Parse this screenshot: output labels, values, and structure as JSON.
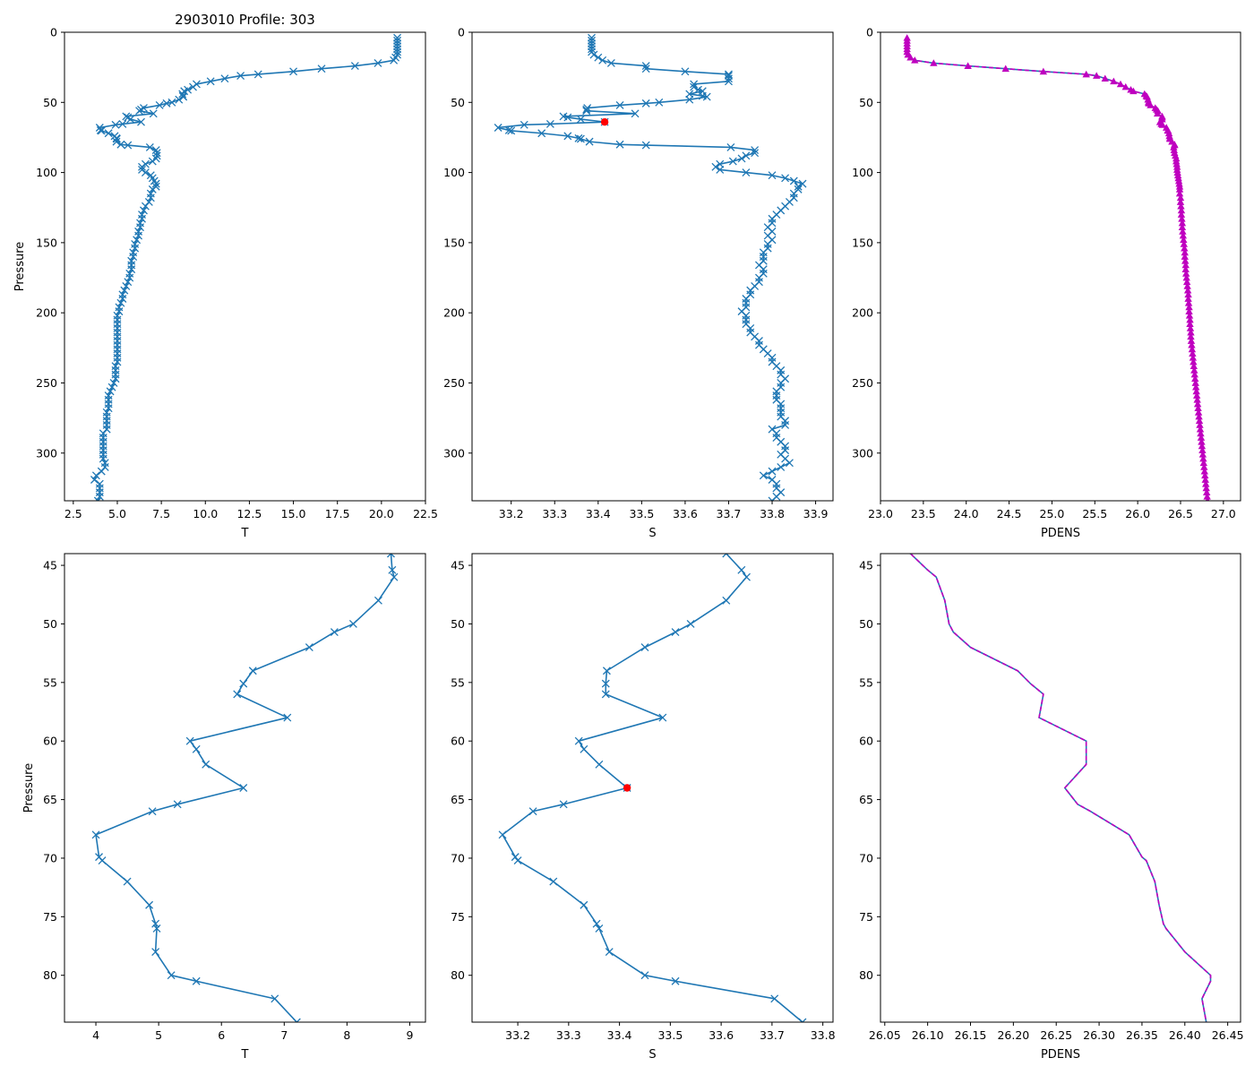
{
  "chart_data": {
    "title": "2903010 Profile: 303",
    "colors": {
      "line": "#1f77b4",
      "marker": "#1f77b4",
      "pdens_marker": "#bf00bf",
      "pdens_dash": "#bf00bf",
      "highlight": "#ff0000"
    },
    "profile": [
      {
        "p": 4,
        "t": 20.9,
        "s": 33.385,
        "d": 23.31
      },
      {
        "p": 6,
        "t": 20.9,
        "s": 33.385,
        "d": 23.31
      },
      {
        "p": 8,
        "t": 20.9,
        "s": 33.385,
        "d": 23.31
      },
      {
        "p": 10,
        "t": 20.9,
        "s": 33.385,
        "d": 23.31
      },
      {
        "p": 12,
        "t": 20.9,
        "s": 33.385,
        "d": 23.31
      },
      {
        "p": 14,
        "t": 20.9,
        "s": 33.385,
        "d": 23.31
      },
      {
        "p": 16,
        "t": 20.9,
        "s": 33.39,
        "d": 23.32
      },
      {
        "p": 18,
        "t": 20.8,
        "s": 33.4,
        "d": 23.35
      },
      {
        "p": 20,
        "t": 20.7,
        "s": 33.41,
        "d": 23.4
      },
      {
        "p": 22,
        "t": 19.8,
        "s": 33.43,
        "d": 23.62
      },
      {
        "p": 24,
        "t": 18.5,
        "s": 33.51,
        "d": 24.02
      },
      {
        "p": 26,
        "t": 16.6,
        "s": 33.51,
        "d": 24.46
      },
      {
        "p": 28,
        "t": 15.0,
        "s": 33.6,
        "d": 24.9
      },
      {
        "p": 30,
        "t": 13.0,
        "s": 33.7,
        "d": 25.4
      },
      {
        "p": 31,
        "t": 12.0,
        "s": 33.7,
        "d": 25.52
      },
      {
        "p": 33,
        "t": 11.1,
        "s": 33.7,
        "d": 25.62
      },
      {
        "p": 35,
        "t": 10.3,
        "s": 33.7,
        "d": 25.72
      },
      {
        "p": 37,
        "t": 9.5,
        "s": 33.62,
        "d": 25.8
      },
      {
        "p": 39,
        "t": 9.3,
        "s": 33.62,
        "d": 25.86
      },
      {
        "p": 41,
        "t": 9.0,
        "s": 33.63,
        "d": 25.92
      },
      {
        "p": 42,
        "t": 8.8,
        "s": 33.64,
        "d": 25.95
      },
      {
        "p": 44,
        "t": 8.7,
        "s": 33.61,
        "d": 26.08
      },
      {
        "p": 45.4,
        "t": 8.72,
        "s": 33.64,
        "d": 26.1
      },
      {
        "p": 46,
        "t": 8.75,
        "s": 33.65,
        "d": 26.11
      },
      {
        "p": 48,
        "t": 8.5,
        "s": 33.61,
        "d": 26.12
      },
      {
        "p": 50,
        "t": 8.1,
        "s": 33.54,
        "d": 26.125
      },
      {
        "p": 50.7,
        "t": 7.8,
        "s": 33.51,
        "d": 26.13
      },
      {
        "p": 52,
        "t": 7.4,
        "s": 33.45,
        "d": 26.15
      },
      {
        "p": 54,
        "t": 6.5,
        "s": 33.375,
        "d": 26.205
      },
      {
        "p": 55.1,
        "t": 6.35,
        "s": 33.373,
        "d": 26.22
      },
      {
        "p": 56,
        "t": 6.25,
        "s": 33.373,
        "d": 26.235
      },
      {
        "p": 58,
        "t": 7.05,
        "s": 33.485,
        "d": 26.23
      },
      {
        "p": 60,
        "t": 5.5,
        "s": 33.32,
        "d": 26.285
      },
      {
        "p": 60.7,
        "t": 5.6,
        "s": 33.33,
        "d": 26.285
      },
      {
        "p": 62,
        "t": 5.75,
        "s": 33.36,
        "d": 26.285
      },
      {
        "p": 64,
        "t": 6.35,
        "s": 33.415,
        "d": 26.26
      },
      {
        "p": 65.4,
        "t": 5.3,
        "s": 33.29,
        "d": 26.275
      },
      {
        "p": 66,
        "t": 4.9,
        "s": 33.23,
        "d": 26.29
      },
      {
        "p": 68,
        "t": 4.0,
        "s": 33.17,
        "d": 26.335
      },
      {
        "p": 69.9,
        "t": 4.05,
        "s": 33.195,
        "d": 26.35
      },
      {
        "p": 70.2,
        "t": 4.1,
        "s": 33.2,
        "d": 26.355
      },
      {
        "p": 72,
        "t": 4.5,
        "s": 33.27,
        "d": 26.365
      },
      {
        "p": 74,
        "t": 4.85,
        "s": 33.33,
        "d": 26.37
      },
      {
        "p": 75.6,
        "t": 4.95,
        "s": 33.355,
        "d": 26.375
      },
      {
        "p": 76,
        "t": 4.97,
        "s": 33.36,
        "d": 26.378
      },
      {
        "p": 78,
        "t": 4.95,
        "s": 33.38,
        "d": 26.4
      },
      {
        "p": 80,
        "t": 5.2,
        "s": 33.45,
        "d": 26.43
      },
      {
        "p": 80.5,
        "t": 5.6,
        "s": 33.51,
        "d": 26.43
      },
      {
        "p": 82,
        "t": 6.85,
        "s": 33.705,
        "d": 26.42
      },
      {
        "p": 84,
        "t": 7.2,
        "s": 33.76,
        "d": 26.425
      },
      {
        "p": 86,
        "t": 7.25,
        "s": 33.76,
        "d": 26.43
      },
      {
        "p": 88,
        "t": 7.25,
        "s": 33.74,
        "d": 26.44
      },
      {
        "p": 90,
        "t": 7.2,
        "s": 33.73,
        "d": 26.45
      },
      {
        "p": 92,
        "t": 7.0,
        "s": 33.71,
        "d": 26.45
      },
      {
        "p": 94,
        "t": 6.6,
        "s": 33.68,
        "d": 26.455
      },
      {
        "p": 96,
        "t": 6.4,
        "s": 33.67,
        "d": 26.46
      },
      {
        "p": 98,
        "t": 6.4,
        "s": 33.68,
        "d": 26.46
      },
      {
        "p": 100,
        "t": 6.6,
        "s": 33.74,
        "d": 26.465
      },
      {
        "p": 102,
        "t": 6.9,
        "s": 33.8,
        "d": 26.47
      },
      {
        "p": 104,
        "t": 7.0,
        "s": 33.83,
        "d": 26.475
      },
      {
        "p": 106,
        "t": 7.1,
        "s": 33.85,
        "d": 26.48
      },
      {
        "p": 108,
        "t": 7.2,
        "s": 33.87,
        "d": 26.485
      },
      {
        "p": 110,
        "t": 7.2,
        "s": 33.86,
        "d": 26.49
      },
      {
        "p": 112,
        "t": 7.0,
        "s": 33.86,
        "d": 26.49
      },
      {
        "p": 115,
        "t": 6.9,
        "s": 33.85,
        "d": 26.49
      },
      {
        "p": 118,
        "t": 6.9,
        "s": 33.85,
        "d": 26.5
      },
      {
        "p": 121,
        "t": 6.8,
        "s": 33.84,
        "d": 26.5
      },
      {
        "p": 124,
        "t": 6.6,
        "s": 33.83,
        "d": 26.505
      },
      {
        "p": 127,
        "t": 6.5,
        "s": 33.82,
        "d": 26.51
      },
      {
        "p": 130,
        "t": 6.4,
        "s": 33.81,
        "d": 26.51
      },
      {
        "p": 133,
        "t": 6.4,
        "s": 33.8,
        "d": 26.515
      },
      {
        "p": 136,
        "t": 6.3,
        "s": 33.8,
        "d": 26.52
      },
      {
        "p": 139,
        "t": 6.3,
        "s": 33.79,
        "d": 26.52
      },
      {
        "p": 142,
        "t": 6.2,
        "s": 33.8,
        "d": 26.525
      },
      {
        "p": 145,
        "t": 6.2,
        "s": 33.79,
        "d": 26.53
      },
      {
        "p": 148,
        "t": 6.1,
        "s": 33.8,
        "d": 26.535
      },
      {
        "p": 151,
        "t": 6.0,
        "s": 33.79,
        "d": 26.54
      },
      {
        "p": 154,
        "t": 6.0,
        "s": 33.79,
        "d": 26.545
      },
      {
        "p": 157,
        "t": 5.9,
        "s": 33.78,
        "d": 26.55
      },
      {
        "p": 160,
        "t": 5.9,
        "s": 33.78,
        "d": 26.55
      },
      {
        "p": 163,
        "t": 5.8,
        "s": 33.78,
        "d": 26.555
      },
      {
        "p": 166,
        "t": 5.8,
        "s": 33.77,
        "d": 26.56
      },
      {
        "p": 169,
        "t": 5.8,
        "s": 33.78,
        "d": 26.56
      },
      {
        "p": 172,
        "t": 5.7,
        "s": 33.78,
        "d": 26.565
      },
      {
        "p": 175,
        "t": 5.7,
        "s": 33.77,
        "d": 26.57
      },
      {
        "p": 178,
        "t": 5.6,
        "s": 33.77,
        "d": 26.575
      },
      {
        "p": 181,
        "t": 5.5,
        "s": 33.76,
        "d": 26.58
      },
      {
        "p": 184,
        "t": 5.4,
        "s": 33.75,
        "d": 26.585
      },
      {
        "p": 187,
        "t": 5.3,
        "s": 33.75,
        "d": 26.59
      },
      {
        "p": 190,
        "t": 5.3,
        "s": 33.74,
        "d": 26.59
      },
      {
        "p": 193,
        "t": 5.2,
        "s": 33.74,
        "d": 26.595
      },
      {
        "p": 196,
        "t": 5.1,
        "s": 33.74,
        "d": 26.6
      },
      {
        "p": 199,
        "t": 5.1,
        "s": 33.73,
        "d": 26.6
      },
      {
        "p": 202,
        "t": 5.0,
        "s": 33.74,
        "d": 26.605
      },
      {
        "p": 205,
        "t": 5.0,
        "s": 33.74,
        "d": 26.61
      },
      {
        "p": 208,
        "t": 5.0,
        "s": 33.74,
        "d": 26.61
      },
      {
        "p": 211,
        "t": 5.0,
        "s": 33.75,
        "d": 26.615
      },
      {
        "p": 214,
        "t": 5.0,
        "s": 33.75,
        "d": 26.62
      },
      {
        "p": 217,
        "t": 5.0,
        "s": 33.76,
        "d": 26.62
      },
      {
        "p": 220,
        "t": 5.0,
        "s": 33.77,
        "d": 26.625
      },
      {
        "p": 223,
        "t": 5.0,
        "s": 33.77,
        "d": 26.63
      },
      {
        "p": 226,
        "t": 5.0,
        "s": 33.78,
        "d": 26.635
      },
      {
        "p": 229,
        "t": 5.0,
        "s": 33.79,
        "d": 26.64
      },
      {
        "p": 232,
        "t": 5.0,
        "s": 33.8,
        "d": 26.645
      },
      {
        "p": 235,
        "t": 5.0,
        "s": 33.8,
        "d": 26.65
      },
      {
        "p": 238,
        "t": 4.9,
        "s": 33.81,
        "d": 26.655
      },
      {
        "p": 241,
        "t": 4.9,
        "s": 33.82,
        "d": 26.66
      },
      {
        "p": 244,
        "t": 4.9,
        "s": 33.82,
        "d": 26.665
      },
      {
        "p": 247,
        "t": 4.9,
        "s": 33.83,
        "d": 26.67
      },
      {
        "p": 250,
        "t": 4.8,
        "s": 33.82,
        "d": 26.675
      },
      {
        "p": 253,
        "t": 4.7,
        "s": 33.82,
        "d": 26.68
      },
      {
        "p": 256,
        "t": 4.6,
        "s": 33.81,
        "d": 26.685
      },
      {
        "p": 259,
        "t": 4.5,
        "s": 33.81,
        "d": 26.69
      },
      {
        "p": 262,
        "t": 4.5,
        "s": 33.81,
        "d": 26.695
      },
      {
        "p": 265,
        "t": 4.5,
        "s": 33.82,
        "d": 26.7
      },
      {
        "p": 268,
        "t": 4.5,
        "s": 33.82,
        "d": 26.705
      },
      {
        "p": 271,
        "t": 4.4,
        "s": 33.82,
        "d": 26.71
      },
      {
        "p": 274,
        "t": 4.4,
        "s": 33.82,
        "d": 26.715
      },
      {
        "p": 277,
        "t": 4.4,
        "s": 33.83,
        "d": 26.72
      },
      {
        "p": 280,
        "t": 4.4,
        "s": 33.83,
        "d": 26.725
      },
      {
        "p": 283,
        "t": 4.4,
        "s": 33.8,
        "d": 26.73
      },
      {
        "p": 286,
        "t": 4.2,
        "s": 33.81,
        "d": 26.735
      },
      {
        "p": 289,
        "t": 4.2,
        "s": 33.81,
        "d": 26.74
      },
      {
        "p": 292,
        "t": 4.2,
        "s": 33.82,
        "d": 26.745
      },
      {
        "p": 295,
        "t": 4.2,
        "s": 33.83,
        "d": 26.75
      },
      {
        "p": 298,
        "t": 4.2,
        "s": 33.83,
        "d": 26.755
      },
      {
        "p": 301,
        "t": 4.2,
        "s": 33.82,
        "d": 26.76
      },
      {
        "p": 304,
        "t": 4.2,
        "s": 33.83,
        "d": 26.765
      },
      {
        "p": 307,
        "t": 4.3,
        "s": 33.84,
        "d": 26.77
      },
      {
        "p": 310,
        "t": 4.3,
        "s": 33.82,
        "d": 26.775
      },
      {
        "p": 313,
        "t": 4.1,
        "s": 33.8,
        "d": 26.78
      },
      {
        "p": 316,
        "t": 3.8,
        "s": 33.78,
        "d": 26.785
      },
      {
        "p": 319,
        "t": 3.7,
        "s": 33.8,
        "d": 26.79
      },
      {
        "p": 322,
        "t": 4.0,
        "s": 33.81,
        "d": 26.795
      },
      {
        "p": 325,
        "t": 4.0,
        "s": 33.81,
        "d": 26.8
      },
      {
        "p": 328,
        "t": 4.0,
        "s": 33.82,
        "d": 26.805
      },
      {
        "p": 331,
        "t": 4.0,
        "s": 33.81,
        "d": 26.81
      },
      {
        "p": 334,
        "t": 3.9,
        "s": 33.8,
        "d": 26.815
      }
    ],
    "highlight_point": {
      "p": 64,
      "s": 33.415
    },
    "panels": [
      {
        "id": "top-t",
        "type": "line",
        "var": "t",
        "xlabel": "T",
        "ylabel": "Pressure",
        "title": "2903010 Profile: 303",
        "xlim": [
          2.0,
          22.5
        ],
        "ylim": [
          334,
          0
        ],
        "zoom": false,
        "markers": "x",
        "dashed": false,
        "xticks": [
          "2.5",
          "5.0",
          "7.5",
          "10.0",
          "12.5",
          "15.0",
          "17.5",
          "20.0",
          "22.5"
        ],
        "xtick_values": [
          2.5,
          5,
          7.5,
          10,
          12.5,
          15,
          17.5,
          20,
          22.5
        ],
        "yticks": [
          "0",
          "50",
          "100",
          "150",
          "200",
          "250",
          "300"
        ],
        "ytick_values": [
          0,
          50,
          100,
          150,
          200,
          250,
          300
        ]
      },
      {
        "id": "top-s",
        "type": "line",
        "var": "s",
        "xlabel": "S",
        "ylabel": "",
        "title": "",
        "xlim": [
          33.11,
          33.94
        ],
        "ylim": [
          334,
          0
        ],
        "zoom": false,
        "markers": "x",
        "dashed": false,
        "highlight": true,
        "xticks": [
          "33.2",
          "33.3",
          "33.4",
          "33.5",
          "33.6",
          "33.7",
          "33.8",
          "33.9"
        ],
        "xtick_values": [
          33.2,
          33.3,
          33.4,
          33.5,
          33.6,
          33.7,
          33.8,
          33.9
        ],
        "yticks": [
          "0",
          "50",
          "100",
          "150",
          "200",
          "250",
          "300"
        ],
        "ytick_values": [
          0,
          50,
          100,
          150,
          200,
          250,
          300
        ]
      },
      {
        "id": "top-pdens",
        "type": "line",
        "var": "d",
        "xlabel": "PDENS",
        "ylabel": "",
        "title": "",
        "xlim": [
          23.0,
          27.2
        ],
        "ylim": [
          334,
          0
        ],
        "zoom": false,
        "markers": "triangle",
        "dashed": true,
        "xticks": [
          "23.0",
          "23.5",
          "24.0",
          "24.5",
          "25.0",
          "25.5",
          "26.0",
          "26.5",
          "27.0"
        ],
        "xtick_values": [
          23.0,
          23.5,
          24.0,
          24.5,
          25.0,
          25.5,
          26.0,
          26.5,
          27.0
        ],
        "yticks": [
          "0",
          "50",
          "100",
          "150",
          "200",
          "250",
          "300"
        ],
        "ytick_values": [
          0,
          50,
          100,
          150,
          200,
          250,
          300
        ]
      },
      {
        "id": "bottom-t",
        "type": "line",
        "var": "t",
        "xlabel": "T",
        "ylabel": "Pressure",
        "title": "",
        "xlim": [
          3.5,
          9.25
        ],
        "ylim": [
          84,
          44
        ],
        "zoom": true,
        "markers": "x",
        "dashed": false,
        "xticks": [
          "4",
          "5",
          "6",
          "7",
          "8",
          "9"
        ],
        "xtick_values": [
          4,
          5,
          6,
          7,
          8,
          9
        ],
        "yticks": [
          "45",
          "50",
          "55",
          "60",
          "65",
          "70",
          "75",
          "80"
        ],
        "ytick_values": [
          45,
          50,
          55,
          60,
          65,
          70,
          75,
          80
        ]
      },
      {
        "id": "bottom-s",
        "type": "line",
        "var": "s",
        "xlabel": "S",
        "ylabel": "",
        "title": "",
        "xlim": [
          33.11,
          33.82
        ],
        "ylim": [
          84,
          44
        ],
        "zoom": true,
        "markers": "x",
        "dashed": false,
        "highlight": true,
        "xticks": [
          "33.2",
          "33.3",
          "33.4",
          "33.5",
          "33.6",
          "33.7",
          "33.8"
        ],
        "xtick_values": [
          33.2,
          33.3,
          33.4,
          33.5,
          33.6,
          33.7,
          33.8
        ],
        "yticks": [
          "45",
          "50",
          "55",
          "60",
          "65",
          "70",
          "75",
          "80"
        ],
        "ytick_values": [
          45,
          50,
          55,
          60,
          65,
          70,
          75,
          80
        ]
      },
      {
        "id": "bottom-pdens",
        "type": "line",
        "var": "d",
        "xlabel": "PDENS",
        "ylabel": "",
        "title": "",
        "xlim": [
          26.045,
          26.465
        ],
        "ylim": [
          84,
          44
        ],
        "zoom": true,
        "markers": "none",
        "dashed": true,
        "xticks": [
          "26.05",
          "26.10",
          "26.15",
          "26.20",
          "26.25",
          "26.30",
          "26.35",
          "26.40",
          "26.45"
        ],
        "xtick_values": [
          26.05,
          26.1,
          26.15,
          26.2,
          26.25,
          26.3,
          26.35,
          26.4,
          26.45
        ],
        "yticks": [
          "45",
          "50",
          "55",
          "60",
          "65",
          "70",
          "75",
          "80"
        ],
        "ytick_values": [
          45,
          50,
          55,
          60,
          65,
          70,
          75,
          80
        ]
      }
    ]
  }
}
